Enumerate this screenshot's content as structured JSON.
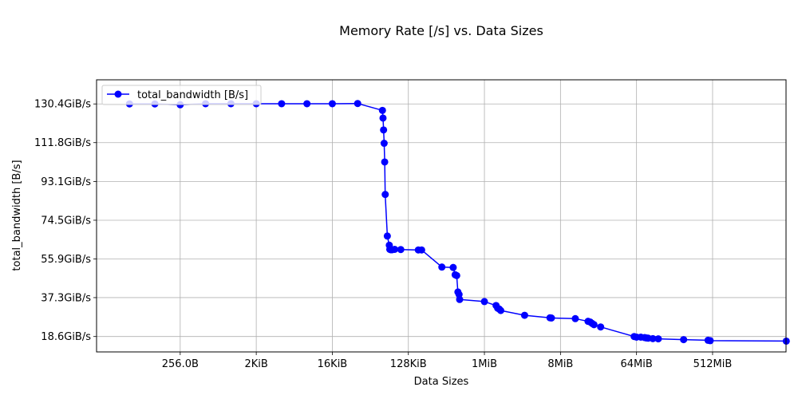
{
  "chart_data": {
    "type": "line",
    "title": "Memory Rate [/s] vs. Data Sizes",
    "xlabel": "Data Sizes",
    "ylabel": "total_bandwidth [B/s]",
    "x_scale": "log2",
    "x_unit": "bytes",
    "x_tick_values": [
      256,
      2048,
      16384,
      131072,
      1048576,
      8388608,
      67108864,
      536870912
    ],
    "x_tick_labels": [
      "256.0B",
      "2KiB",
      "16KiB",
      "128KiB",
      "1MiB",
      "8MiB",
      "64MiB",
      "512MiB"
    ],
    "y_unit": "GiB/s",
    "y_tick_values": [
      18.6,
      37.3,
      55.9,
      74.5,
      93.1,
      111.8,
      130.4
    ],
    "y_tick_labels": [
      "18.6GiB/s",
      "37.3GiB/s",
      "55.9GiB/s",
      "74.5GiB/s",
      "93.1GiB/s",
      "111.8GiB/s",
      "130.4GiB/s"
    ],
    "xlim": [
      26,
      4000000000
    ],
    "ylim": [
      11.2,
      142.0
    ],
    "grid": true,
    "legend_position": "upper left",
    "series": [
      {
        "name": "total_bandwidth [B/s]",
        "color": "#0000ff",
        "marker": "circle",
        "x": [
          64,
          128,
          256,
          512,
          1024,
          2048,
          4096,
          8192,
          16384,
          32768,
          64512,
          65536,
          66560,
          67584,
          68608,
          69632,
          73728,
          77824,
          78848,
          80896,
          83968,
          90112,
          106496,
          172032,
          188416,
          327680,
          446464,
          471040,
          491520,
          507904,
          524288,
          532480,
          1048576,
          1441792,
          1507328,
          1572864,
          1638400,
          3145728,
          6291456,
          6553600,
          12582912,
          17825792,
          18874368,
          19922944,
          20971520,
          25165824,
          62914560,
          67108864,
          75497472,
          83886080,
          88080384,
          92274688,
          104857600,
          121634816,
          243269632,
          473956352,
          503316480,
          4026531840
        ],
        "y": [
          130.4,
          130.4,
          130.0,
          130.5,
          130.5,
          130.5,
          130.5,
          130.5,
          130.5,
          130.6,
          127.3,
          123.6,
          117.9,
          111.5,
          102.5,
          86.9,
          66.9,
          62.5,
          60.5,
          60.3,
          60.3,
          60.5,
          60.4,
          60.2,
          60.2,
          52.0,
          51.8,
          48.3,
          47.9,
          40.0,
          38.8,
          36.4,
          35.4,
          33.5,
          32.2,
          31.8,
          31.1,
          28.8,
          27.6,
          27.5,
          27.2,
          25.9,
          25.6,
          24.9,
          24.3,
          23.2,
          18.6,
          18.3,
          18.3,
          18.1,
          17.9,
          17.8,
          17.6,
          17.5,
          17.1,
          16.8,
          16.6,
          16.4
        ]
      }
    ]
  }
}
